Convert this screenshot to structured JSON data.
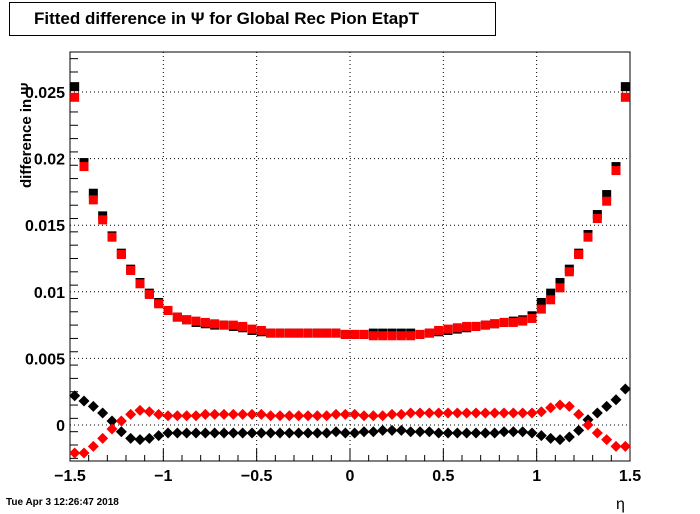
{
  "chart_data": {
    "type": "scatter",
    "title": "Fitted difference in  Ψ  for Global Rec Pion EtapT",
    "xlabel": "η",
    "ylabel": "difference in  Ψ",
    "xlim": [
      -1.5,
      1.5
    ],
    "ylim": [
      -0.0027,
      0.028
    ],
    "grid": true,
    "xticks": [
      -1.5,
      -1,
      -0.5,
      0,
      0.5,
      1,
      1.5
    ],
    "xtick_labels": [
      "−1.5",
      "−1",
      "−0.5",
      "0",
      "0.5",
      "1",
      "1.5"
    ],
    "yticks": [
      0,
      0.005,
      0.01,
      0.015,
      0.02,
      0.025
    ],
    "ytick_labels": [
      "0",
      "0.005",
      "0.01",
      "0.015",
      "0.02",
      "0.025"
    ],
    "x": [
      -1.475,
      -1.425,
      -1.375,
      -1.325,
      -1.275,
      -1.225,
      -1.175,
      -1.125,
      -1.075,
      -1.025,
      -0.975,
      -0.925,
      -0.875,
      -0.825,
      -0.775,
      -0.725,
      -0.675,
      -0.625,
      -0.575,
      -0.525,
      -0.475,
      -0.425,
      -0.375,
      -0.325,
      -0.275,
      -0.225,
      -0.175,
      -0.125,
      -0.075,
      -0.025,
      0.025,
      0.075,
      0.125,
      0.175,
      0.225,
      0.275,
      0.325,
      0.375,
      0.425,
      0.475,
      0.525,
      0.575,
      0.625,
      0.675,
      0.725,
      0.775,
      0.825,
      0.875,
      0.925,
      0.975,
      1.025,
      1.075,
      1.125,
      1.175,
      1.225,
      1.275,
      1.325,
      1.375,
      1.425,
      1.475
    ],
    "series": [
      {
        "marker": "square",
        "color": "#000000",
        "values": [
          0.0254,
          0.0197,
          0.0174,
          0.0157,
          0.0142,
          0.0129,
          0.0117,
          0.0107,
          0.0099,
          0.0092,
          0.0086,
          0.0081,
          0.0079,
          0.0077,
          0.0076,
          0.0075,
          0.0075,
          0.0074,
          0.0073,
          0.0071,
          0.007,
          0.0069,
          0.0069,
          0.0069,
          0.0069,
          0.0069,
          0.0069,
          0.0069,
          0.0069,
          0.0068,
          0.0068,
          0.0068,
          0.0069,
          0.0069,
          0.0069,
          0.0069,
          0.0069,
          0.0068,
          0.0069,
          0.007,
          0.0071,
          0.0072,
          0.0073,
          0.0074,
          0.0075,
          0.0076,
          0.0077,
          0.0078,
          0.0079,
          0.0082,
          0.0092,
          0.0099,
          0.0107,
          0.0117,
          0.0129,
          0.0143,
          0.0158,
          0.0173,
          0.0194,
          0.0254
        ]
      },
      {
        "marker": "square",
        "color": "#ff0000",
        "values": [
          0.0246,
          0.0194,
          0.0169,
          0.0154,
          0.0141,
          0.0128,
          0.0116,
          0.0106,
          0.0098,
          0.0091,
          0.0086,
          0.0081,
          0.0079,
          0.0078,
          0.0077,
          0.0076,
          0.0075,
          0.0075,
          0.0074,
          0.0072,
          0.0071,
          0.0069,
          0.0069,
          0.0069,
          0.0069,
          0.0069,
          0.0069,
          0.0069,
          0.0069,
          0.0068,
          0.0068,
          0.0068,
          0.0067,
          0.0067,
          0.0067,
          0.0067,
          0.0067,
          0.0068,
          0.0069,
          0.0071,
          0.0072,
          0.0073,
          0.0074,
          0.0074,
          0.0075,
          0.0076,
          0.0077,
          0.0077,
          0.0078,
          0.008,
          0.0087,
          0.0094,
          0.0103,
          0.0115,
          0.0128,
          0.0141,
          0.0155,
          0.0168,
          0.0191,
          0.0246
        ]
      },
      {
        "marker": "diamond",
        "color": "#000000",
        "values": [
          0.0022,
          0.0018,
          0.0014,
          0.0009,
          0.0003,
          -0.0005,
          -0.001,
          -0.0011,
          -0.001,
          -0.0008,
          -0.0006,
          -0.0006,
          -0.0006,
          -0.0006,
          -0.0006,
          -0.0006,
          -0.0006,
          -0.0006,
          -0.0006,
          -0.0006,
          -0.0006,
          -0.0006,
          -0.0006,
          -0.0006,
          -0.0006,
          -0.0006,
          -0.0006,
          -0.0006,
          -0.0005,
          -0.0006,
          -0.0006,
          -0.0005,
          -0.0005,
          -0.0004,
          -0.0004,
          -0.0004,
          -0.0005,
          -0.0005,
          -0.0005,
          -0.0006,
          -0.0006,
          -0.0006,
          -0.0006,
          -0.0006,
          -0.0006,
          -0.0006,
          -0.0005,
          -0.0005,
          -0.0005,
          -0.0006,
          -0.0008,
          -0.001,
          -0.0011,
          -0.0009,
          -0.0004,
          0.0004,
          0.0009,
          0.0014,
          0.0019,
          0.0027
        ]
      },
      {
        "marker": "diamond",
        "color": "#ff0000",
        "values": [
          -0.0021,
          -0.0021,
          -0.0016,
          -0.001,
          -0.0003,
          0.0003,
          0.0008,
          0.0011,
          0.001,
          0.0008,
          0.0007,
          0.0007,
          0.0007,
          0.0007,
          0.0008,
          0.0008,
          0.0008,
          0.0008,
          0.0008,
          0.0008,
          0.0008,
          0.0007,
          0.0007,
          0.0007,
          0.0007,
          0.0007,
          0.0007,
          0.0007,
          0.0008,
          0.0008,
          0.0008,
          0.0007,
          0.0007,
          0.0007,
          0.0008,
          0.0008,
          0.0009,
          0.0009,
          0.0009,
          0.0009,
          0.0009,
          0.0009,
          0.0009,
          0.0009,
          0.0009,
          0.0009,
          0.0009,
          0.0009,
          0.0009,
          0.0009,
          0.001,
          0.0013,
          0.0015,
          0.0014,
          0.0008,
          0.0,
          -0.0006,
          -0.0011,
          -0.0016,
          -0.0016
        ]
      }
    ]
  },
  "timestamp": "Tue Apr  3 12:26:47 2018"
}
